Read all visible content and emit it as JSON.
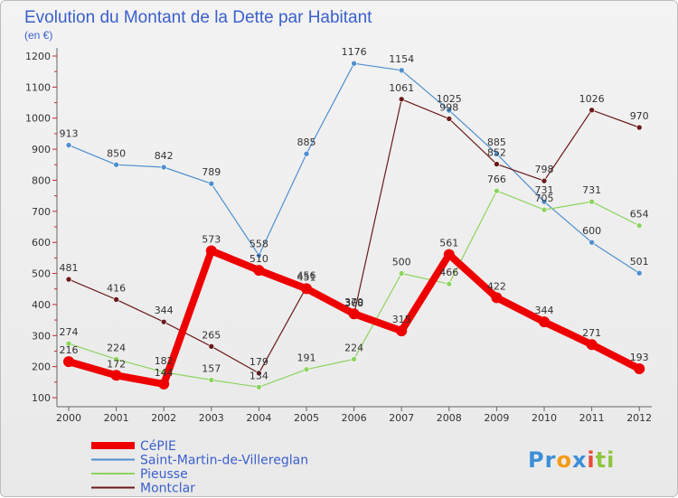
{
  "chart_data": {
    "type": "line",
    "title": "Evolution du Montant de la Dette par Habitant",
    "subtitle": "(en €)",
    "categories": [
      "2000",
      "2001",
      "2002",
      "2003",
      "2004",
      "2005",
      "2006",
      "2007",
      "2008",
      "2009",
      "2010",
      "2011",
      "2012"
    ],
    "ylim": [
      100,
      1200
    ],
    "yticks": [
      100,
      200,
      300,
      400,
      500,
      600,
      700,
      800,
      900,
      1000,
      1100,
      1200
    ],
    "grid": false,
    "legend_placement": "bottom-left",
    "series": [
      {
        "name": "CéPIE",
        "color": "#ee0000",
        "values": [
          216,
          172,
          144,
          573,
          510,
          451,
          370,
          315,
          561,
          422,
          344,
          271,
          193
        ]
      },
      {
        "name": "Saint-Martin-de-Villereglan",
        "color": "#4f8fcf",
        "values": [
          913,
          850,
          842,
          789,
          558,
          885,
          1176,
          1154,
          1025,
          885,
          731,
          600,
          501
        ]
      },
      {
        "name": "Pieusse",
        "color": "#8dd35f",
        "values": [
          274,
          224,
          182,
          157,
          134,
          191,
          224,
          500,
          466,
          766,
          705,
          731,
          654
        ]
      },
      {
        "name": "Montclar",
        "color": "#6b1a1a",
        "values": [
          481,
          416,
          344,
          265,
          179,
          456,
          368,
          1061,
          998,
          852,
          798,
          1026,
          970
        ]
      }
    ]
  },
  "logo_text": "Proxiti"
}
